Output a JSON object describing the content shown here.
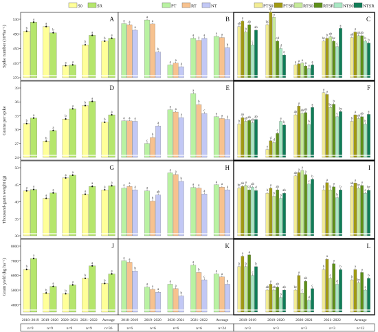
{
  "legend": {
    "groups": [
      {
        "items": [
          {
            "name": "S0",
            "color": "#ffff99"
          },
          {
            "name": "SR",
            "color": "#b5e66c"
          }
        ]
      },
      {
        "items": [
          {
            "name": "PT",
            "color": "#b9f2a2"
          },
          {
            "name": "RT",
            "color": "#f7c28f"
          },
          {
            "name": "NT",
            "color": "#c2c8f5"
          }
        ]
      },
      {
        "items": [
          {
            "name": "PTS0",
            "color": "#f2ec94"
          },
          {
            "name": "PTSR",
            "color": "#a19a12"
          },
          {
            "name": "RTS0",
            "color": "#c6ea99"
          },
          {
            "name": "RTSR",
            "color": "#5d8f17"
          },
          {
            "name": "NTS0",
            "color": "#a9e8c4"
          },
          {
            "name": "NTSR",
            "color": "#0f7d57"
          }
        ]
      }
    ]
  },
  "x_axis": {
    "categories": [
      "2018–2019",
      "2019–2020",
      "2020–2021",
      "2021–2022",
      "Average"
    ],
    "n_labels": [
      [
        "n=9",
        "n=9",
        "n=9",
        "n=9",
        "n=36"
      ],
      [
        "n=6",
        "n=6",
        "n=6",
        "n=6",
        "n=24"
      ],
      [
        "n=3",
        "n=3",
        "n=3",
        "n=3",
        "n=12"
      ]
    ]
  },
  "rows": [
    {
      "ylabel": "Spike number (10⁴ha⁻¹)"
    },
    {
      "ylabel": "Grains per spike"
    },
    {
      "ylabel": "Thousand-grain weight (g)"
    },
    {
      "ylabel": "Grain yield (kg ha⁻¹)"
    }
  ],
  "chart_data": [
    {
      "panel": "A",
      "type": "bar",
      "row": 0,
      "col": 0,
      "ylim": [
        370,
        530
      ],
      "yticks": [
        370,
        410,
        450,
        490,
        530
      ],
      "series_names": [
        "S0",
        "SR"
      ],
      "categories": [
        "2018–2019",
        "2019–2020",
        "2020–2021",
        "2021–2022",
        "Average"
      ],
      "values": [
        [
          497,
          522
        ],
        [
          510,
          493
        ],
        [
          403,
          405
        ],
        [
          460,
          486
        ],
        [
          470,
          478
        ]
      ],
      "letters": [
        [
          "b",
          "a"
        ],
        [
          "a",
          "b"
        ],
        [
          "a",
          "a"
        ],
        [
          "b",
          "a"
        ],
        [
          "b",
          "a"
        ]
      ]
    },
    {
      "panel": "B",
      "type": "bar",
      "row": 0,
      "col": 1,
      "ylim": [
        370,
        530
      ],
      "series_names": [
        "PT",
        "RT",
        "NT"
      ],
      "categories": [
        "2018–2019",
        "2019–2020",
        "2020–2021",
        "2021–2022",
        "Average"
      ],
      "values": [
        [
          518,
          515,
          500
        ],
        [
          528,
          517,
          440
        ],
        [
          405,
          410,
          400
        ],
        [
          478,
          472,
          478
        ],
        [
          483,
          480,
          452
        ]
      ],
      "letters": [
        [
          "a",
          "a",
          "a"
        ],
        [
          "a",
          "a",
          "b"
        ],
        [
          "a",
          "a",
          "a"
        ],
        [
          "a",
          "a",
          "a"
        ],
        [
          "a",
          "a",
          "b"
        ]
      ]
    },
    {
      "panel": "C",
      "type": "bar",
      "row": 0,
      "col": 2,
      "ylim": [
        370,
        530
      ],
      "series_names": [
        "PTS0",
        "PTSR",
        "RTS0",
        "RTSR",
        "NTS0",
        "NTSR"
      ],
      "categories": [
        "2018–2019",
        "2019–2020",
        "2020–2021",
        "2021–2022",
        "Average"
      ],
      "values": [
        [
          510,
          525,
          495,
          515,
          460,
          500
        ],
        [
          515,
          550,
          535,
          470,
          450,
          432
        ],
        [
          405,
          408,
          410,
          402,
          395,
          405
        ],
        [
          470,
          478,
          482,
          470,
          455,
          505
        ],
        [
          480,
          495,
          485,
          485,
          470,
          465
        ]
      ],
      "letters": [
        [
          "ab",
          "a",
          "b",
          "ab",
          "c",
          "ab"
        ],
        [
          "bc",
          "ab",
          "a",
          "cd",
          "d",
          "e"
        ],
        [
          "a",
          "a",
          "a",
          "a",
          "a",
          "a"
        ],
        [
          "bc",
          "b",
          "ab",
          "bc",
          "c",
          "a"
        ],
        [
          "ab",
          "a",
          "ab",
          "ab",
          "b",
          "b"
        ]
      ]
    },
    {
      "panel": "D",
      "type": "bar",
      "row": 1,
      "col": 0,
      "ylim": [
        24,
        39
      ],
      "yticks": [
        24,
        27,
        30,
        33,
        36,
        39
      ],
      "series_names": [
        "S0",
        "SR"
      ],
      "categories": [
        "2018–2019",
        "2019–2020",
        "2020–2021",
        "2021–2022",
        "Average"
      ],
      "values": [
        [
          31.3,
          32.5
        ],
        [
          27.5,
          29.8
        ],
        [
          32.3,
          34.5
        ],
        [
          35.2,
          36.1
        ],
        [
          31.6,
          33.2
        ]
      ],
      "letters": [
        [
          "b",
          "a"
        ],
        [
          "b",
          "a"
        ],
        [
          "b",
          "a"
        ],
        [
          "b",
          "a"
        ],
        [
          "b",
          "a"
        ]
      ]
    },
    {
      "panel": "E",
      "type": "bar",
      "row": 1,
      "col": 1,
      "ylim": [
        24,
        39
      ],
      "series_names": [
        "PT",
        "RT",
        "NT"
      ],
      "categories": [
        "2018–2019",
        "2019–2020",
        "2020–2021",
        "2021–2022",
        "Average"
      ],
      "values": [
        [
          31.9,
          31.9,
          31.8
        ],
        [
          27.0,
          28.3,
          30.8
        ],
        [
          34.3,
          33.8,
          32.6
        ],
        [
          37.8,
          35.4,
          33.5
        ],
        [
          32.8,
          32.4,
          32.2
        ]
      ],
      "letters": [
        [
          "a",
          "a",
          "a"
        ],
        [
          "c",
          "b",
          "a"
        ],
        [
          "a",
          "a",
          "a"
        ],
        [
          "a",
          "b",
          "c"
        ],
        [
          "a",
          "a",
          "a"
        ]
      ]
    },
    {
      "panel": "F",
      "type": "bar",
      "row": 1,
      "col": 2,
      "ylim": [
        24,
        39
      ],
      "series_names": [
        "PTS0",
        "PTSR",
        "RTS0",
        "RTSR",
        "NTS0",
        "NTSR"
      ],
      "categories": [
        "2018–2019",
        "2019–2020",
        "2020–2021",
        "2021–2022",
        "Average"
      ],
      "values": [
        [
          31.2,
          32.6,
          31.8,
          32.0,
          31.5,
          32.2
        ],
        [
          25.7,
          27.6,
          27.2,
          29.2,
          31.8,
          31.0
        ],
        [
          33.2,
          35.1,
          33.5,
          33.7,
          31.1,
          34.8
        ],
        [
          38.0,
          37.6,
          34.8,
          35.5,
          32.8,
          33.9
        ],
        [
          31.8,
          33.2,
          32.4,
          32.8,
          31.2,
          33.3
        ]
      ],
      "letters": [
        [
          "b",
          "ab",
          "ab",
          "ab",
          "ab",
          "ab"
        ],
        [
          "e",
          "d",
          "d",
          "c",
          "a",
          "b"
        ],
        [
          "ab",
          "a",
          "ab",
          "ab",
          "b",
          "a"
        ],
        [
          "a",
          "a",
          "bc",
          "b",
          "c",
          "bc"
        ],
        [
          "b",
          "a",
          "ab",
          "ab",
          "b",
          "a"
        ]
      ]
    },
    {
      "panel": "G",
      "type": "bar",
      "row": 2,
      "col": 0,
      "ylim": [
        30,
        50
      ],
      "yticks": [
        30,
        35,
        40,
        45,
        50
      ],
      "series_names": [
        "S0",
        "SR"
      ],
      "categories": [
        "2018–2019",
        "2019–2020",
        "2020–2021",
        "2021–2022",
        "Average"
      ],
      "values": [
        [
          43.2,
          43.6
        ],
        [
          41.0,
          42.6
        ],
        [
          47.0,
          47.8
        ],
        [
          42.2,
          44.5
        ],
        [
          43.5,
          44.7
        ]
      ],
      "letters": [
        [
          "a",
          "a"
        ],
        [
          "a",
          "a"
        ],
        [
          "a",
          "a"
        ],
        [
          "a",
          "a"
        ],
        [
          "a",
          "a"
        ]
      ]
    },
    {
      "panel": "H",
      "type": "bar",
      "row": 2,
      "col": 1,
      "ylim": [
        30,
        50
      ],
      "series_names": [
        "PT",
        "RT",
        "NT"
      ],
      "categories": [
        "2018–2019",
        "2019–2020",
        "2020–2021",
        "2021–2022",
        "Average"
      ],
      "values": [
        [
          44.0,
          44.5,
          43.5
        ],
        [
          43.2,
          40.2,
          42.0
        ],
        [
          48.5,
          48.0,
          46.0
        ],
        [
          44.2,
          44.0,
          42.3
        ],
        [
          45.0,
          44.3,
          43.5
        ]
      ],
      "letters": [
        [
          "a",
          "a",
          "a"
        ],
        [
          "a",
          "b",
          "ab"
        ],
        [
          "a",
          "a",
          "b"
        ],
        [
          "a",
          "a",
          "a"
        ],
        [
          "a",
          "a",
          "a"
        ]
      ]
    },
    {
      "panel": "I",
      "type": "bar",
      "row": 2,
      "col": 2,
      "ylim": [
        30,
        50
      ],
      "series_names": [
        "PTS0",
        "PTSR",
        "RTS0",
        "RTSR",
        "NTS0",
        "NTSR"
      ],
      "categories": [
        "2018–2019",
        "2019–2020",
        "2020–2021",
        "2021–2022",
        "Average"
      ],
      "values": [
        [
          44.0,
          44.5,
          44.8,
          43.5,
          44.3,
          43.3
        ],
        [
          42.5,
          44.0,
          41.6,
          43.5,
          41.0,
          42.5
        ],
        [
          47.6,
          48.6,
          49.2,
          48.0,
          45.2,
          46.6
        ],
        [
          43.5,
          45.6,
          43.5,
          44.4,
          41.2,
          43.5
        ],
        [
          44.5,
          45.5,
          44.0,
          44.8,
          42.5,
          43.4
        ]
      ],
      "letters": [
        [
          "bc",
          "ab",
          "a",
          "cd",
          "ab",
          "d"
        ],
        [
          "b",
          "a",
          "b",
          "ab",
          "b",
          "ab"
        ],
        [
          "ab",
          "a",
          "a",
          "a",
          "c",
          "b"
        ],
        [
          "b",
          "a",
          "b",
          "a",
          "b",
          "b"
        ],
        [
          "ab",
          "a",
          "bc",
          "a",
          "c",
          "bc"
        ]
      ]
    },
    {
      "panel": "J",
      "type": "bar",
      "row": 3,
      "col": 0,
      "ylim": [
        3500,
        8000
      ],
      "yticks": [
        4000,
        5000,
        6000,
        7000,
        8000
      ],
      "series_names": [
        "S0",
        "SR"
      ],
      "categories": [
        "2018–2019",
        "2019–2020",
        "2020–2021",
        "2021–2022",
        "Average"
      ],
      "values": [
        [
          6400,
          7150
        ],
        [
          4800,
          5250
        ],
        [
          4750,
          5350
        ],
        [
          5800,
          6650
        ],
        [
          5450,
          6100
        ]
      ],
      "letters": [
        [
          "b",
          "a"
        ],
        [
          "b",
          "a"
        ],
        [
          "b",
          "a"
        ],
        [
          "b",
          "a"
        ],
        [
          "b",
          "a"
        ]
      ]
    },
    {
      "panel": "K",
      "type": "bar",
      "row": 3,
      "col": 1,
      "ylim": [
        3500,
        8000
      ],
      "series_names": [
        "PT",
        "RT",
        "NT"
      ],
      "categories": [
        "2018–2019",
        "2019–2020",
        "2020–2021",
        "2021–2022",
        "Average"
      ],
      "values": [
        [
          7000,
          6900,
          6300
        ],
        [
          5200,
          5050,
          4850
        ],
        [
          5400,
          5100,
          4600
        ],
        [
          6700,
          6200,
          5700
        ],
        [
          6100,
          5900,
          5400
        ]
      ],
      "letters": [
        [
          "a",
          "a",
          "b"
        ],
        [
          "a",
          "a",
          "a"
        ],
        [
          "a",
          "a",
          "b"
        ],
        [
          "a",
          "b",
          "c"
        ],
        [
          "a",
          "a",
          "b"
        ]
      ]
    },
    {
      "panel": "L",
      "type": "bar",
      "row": 3,
      "col": 2,
      "ylim": [
        3500,
        8000
      ],
      "series_names": [
        "PTS0",
        "PTSR",
        "RTS0",
        "RTSR",
        "NTS0",
        "NTSR"
      ],
      "categories": [
        "2018–2019",
        "2019–2020",
        "2020–2021",
        "2021–2022",
        "Average"
      ],
      "values": [
        [
          6600,
          7300,
          6600,
          7400,
          6000,
          6600
        ],
        [
          5000,
          5400,
          5000,
          5200,
          4500,
          5000
        ],
        [
          5000,
          6000,
          4800,
          5600,
          4300,
          5100
        ],
        [
          6400,
          7100,
          5800,
          6800,
          5400,
          6400
        ],
        [
          5700,
          6400,
          5500,
          6200,
          5000,
          5800
        ]
      ],
      "letters": [
        [
          "b",
          "a",
          "b",
          "a",
          "c",
          "b"
        ],
        [
          "ab",
          "a",
          "ab",
          "ab",
          "b",
          "ab"
        ],
        [
          "bc",
          "a",
          "c",
          "ab",
          "d",
          "c"
        ],
        [
          "b",
          "a",
          "c",
          "a",
          "d",
          "b"
        ],
        [
          "b",
          "a",
          "bc",
          "a",
          "c",
          "b"
        ]
      ]
    }
  ]
}
